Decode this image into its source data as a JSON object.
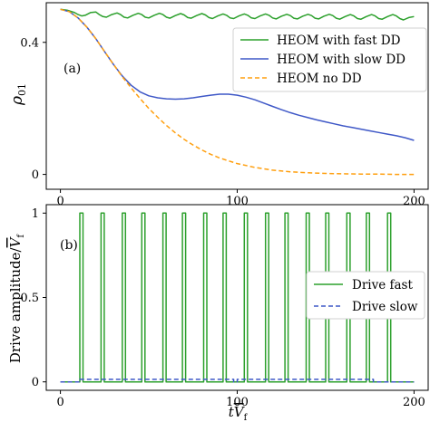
{
  "chart_data": [
    {
      "type": "line",
      "panel_label": "(a)",
      "ylabel_main": "ρ",
      "ylabel_sub": "01",
      "xlim": [
        -8,
        208
      ],
      "ylim": [
        -0.045,
        0.52
      ],
      "xticks": [
        0,
        100,
        200
      ],
      "yticks": [
        0,
        0.4
      ],
      "ytick_labels": [
        "0",
        "0.4"
      ],
      "legend_position": "upper right",
      "series": [
        {
          "name": "HEOM with fast DD",
          "color": "#2ca02c",
          "style": "solid",
          "x": [
            0,
            4,
            8,
            10,
            12,
            14,
            17,
            20,
            22,
            24,
            26,
            29,
            32,
            34,
            36,
            38,
            41,
            44,
            46,
            48,
            50,
            53,
            56,
            58,
            60,
            62,
            65,
            68,
            70,
            72,
            74,
            77,
            80,
            82,
            84,
            86,
            89,
            92,
            94,
            96,
            98,
            101,
            104,
            106,
            108,
            110,
            113,
            116,
            118,
            120,
            122,
            125,
            128,
            130,
            132,
            134,
            137,
            140,
            142,
            144,
            146,
            149,
            152,
            154,
            156,
            158,
            161,
            164,
            166,
            168,
            170,
            173,
            176,
            178,
            180,
            182,
            185,
            188,
            190,
            192,
            194,
            197,
            200
          ],
          "y": [
            0.5,
            0.497,
            0.49,
            0.484,
            0.48,
            0.482,
            0.49,
            0.492,
            0.484,
            0.478,
            0.476,
            0.484,
            0.489,
            0.484,
            0.476,
            0.474,
            0.482,
            0.488,
            0.484,
            0.476,
            0.474,
            0.482,
            0.488,
            0.484,
            0.476,
            0.473,
            0.481,
            0.487,
            0.483,
            0.475,
            0.473,
            0.481,
            0.487,
            0.483,
            0.475,
            0.472,
            0.48,
            0.486,
            0.482,
            0.474,
            0.472,
            0.48,
            0.486,
            0.482,
            0.474,
            0.472,
            0.48,
            0.486,
            0.482,
            0.474,
            0.471,
            0.479,
            0.485,
            0.481,
            0.473,
            0.471,
            0.479,
            0.485,
            0.481,
            0.473,
            0.471,
            0.479,
            0.485,
            0.481,
            0.473,
            0.47,
            0.478,
            0.484,
            0.48,
            0.472,
            0.47,
            0.478,
            0.484,
            0.48,
            0.472,
            0.47,
            0.478,
            0.484,
            0.48,
            0.472,
            0.468,
            0.475,
            0.478
          ]
        },
        {
          "name": "HEOM with slow DD",
          "color": "#3f58c7",
          "style": "solid",
          "x": [
            0,
            5,
            10,
            15,
            20,
            25,
            30,
            35,
            40,
            45,
            50,
            55,
            60,
            65,
            70,
            75,
            80,
            85,
            90,
            95,
            100,
            105,
            110,
            115,
            120,
            125,
            130,
            135,
            140,
            145,
            150,
            155,
            160,
            165,
            170,
            175,
            180,
            185,
            190,
            195,
            200
          ],
          "y": [
            0.5,
            0.493,
            0.474,
            0.446,
            0.411,
            0.372,
            0.333,
            0.298,
            0.27,
            0.25,
            0.238,
            0.232,
            0.229,
            0.228,
            0.229,
            0.232,
            0.236,
            0.24,
            0.243,
            0.243,
            0.24,
            0.234,
            0.226,
            0.216,
            0.206,
            0.196,
            0.187,
            0.179,
            0.172,
            0.165,
            0.159,
            0.153,
            0.147,
            0.142,
            0.137,
            0.132,
            0.127,
            0.122,
            0.117,
            0.111,
            0.103
          ]
        },
        {
          "name": "HEOM no DD",
          "color": "#ff9f0e",
          "style": "dashed",
          "x": [
            0,
            5,
            10,
            15,
            20,
            25,
            30,
            35,
            40,
            45,
            50,
            55,
            60,
            65,
            70,
            75,
            80,
            85,
            90,
            95,
            100,
            110,
            120,
            130,
            140,
            150,
            160,
            170,
            180,
            190,
            200
          ],
          "y": [
            0.5,
            0.493,
            0.474,
            0.446,
            0.411,
            0.372,
            0.333,
            0.296,
            0.262,
            0.23,
            0.2,
            0.173,
            0.148,
            0.126,
            0.106,
            0.089,
            0.074,
            0.061,
            0.05,
            0.041,
            0.033,
            0.021,
            0.013,
            0.008,
            0.005,
            0.003,
            0.002,
            0.001,
            0.001,
            0.0,
            0.0
          ]
        }
      ]
    },
    {
      "type": "line",
      "panel_label": "(b)",
      "ylabel_main": "Drive amplitude/",
      "ylabel_sub": "f",
      "xlabel_main": "t",
      "xlabel_sub": "f",
      "xlim": [
        -8,
        208
      ],
      "ylim": [
        -0.05,
        1.05
      ],
      "xticks": [
        0,
        100,
        200
      ],
      "yticks": [
        0,
        0.5,
        1
      ],
      "ytick_labels": [
        "0",
        "0.5",
        "1"
      ],
      "legend_position": "center right",
      "series": [
        {
          "name": "Drive fast",
          "color": "#2ca02c",
          "style": "solid",
          "pulse_starts": [
            11,
            23,
            35,
            46,
            58,
            69,
            81,
            92,
            104,
            116,
            127,
            139,
            150,
            162,
            173,
            185
          ],
          "pulse_width": 1.8,
          "low": 0,
          "high": 1
        },
        {
          "name": "Drive slow",
          "color": "#3f58c7",
          "style": "dashed",
          "x": [
            0,
            11,
            11,
            98,
            98,
            100,
            100,
            177,
            177,
            200
          ],
          "y": [
            0,
            0,
            0.015,
            0.015,
            0,
            0,
            0.015,
            0.015,
            0,
            0
          ]
        }
      ]
    }
  ]
}
